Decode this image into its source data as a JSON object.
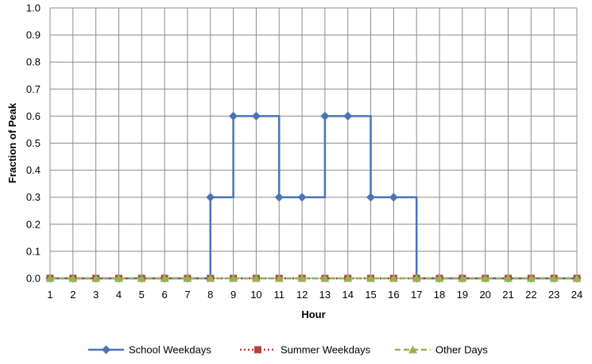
{
  "chart_data": {
    "type": "line",
    "xlabel": "Hour",
    "ylabel": "Fraction of Peak",
    "x": [
      1,
      2,
      3,
      4,
      5,
      6,
      7,
      8,
      9,
      10,
      11,
      12,
      13,
      14,
      15,
      16,
      17,
      18,
      19,
      20,
      21,
      22,
      23,
      24
    ],
    "xlim": [
      1,
      24
    ],
    "ylim": [
      0,
      1.0
    ],
    "ytick_step": 0.1,
    "grid": true,
    "step_style": "stepped",
    "legend_position": "bottom",
    "series": [
      {
        "name": "School Weekdays",
        "color": "#4a74b5",
        "marker": "diamond-icon",
        "line": "solid",
        "values": [
          0,
          0,
          0,
          0,
          0,
          0,
          0,
          0.3,
          0.6,
          0.6,
          0.3,
          0.3,
          0.6,
          0.6,
          0.3,
          0.3,
          0,
          0,
          0,
          0,
          0,
          0,
          0,
          0
        ]
      },
      {
        "name": "Summer Weekdays",
        "color": "#b8403c",
        "marker": "square-icon",
        "line": "dotted",
        "values": [
          0,
          0,
          0,
          0,
          0,
          0,
          0,
          0,
          0,
          0,
          0,
          0,
          0,
          0,
          0,
          0,
          0,
          0,
          0,
          0,
          0,
          0,
          0,
          0
        ]
      },
      {
        "name": "Other Days",
        "color": "#94b450",
        "marker": "triangle-icon",
        "line": "dashed",
        "values": [
          0,
          0,
          0,
          0,
          0,
          0,
          0,
          0,
          0,
          0,
          0,
          0,
          0,
          0,
          0,
          0,
          0,
          0,
          0,
          0,
          0,
          0,
          0,
          0
        ]
      }
    ]
  }
}
